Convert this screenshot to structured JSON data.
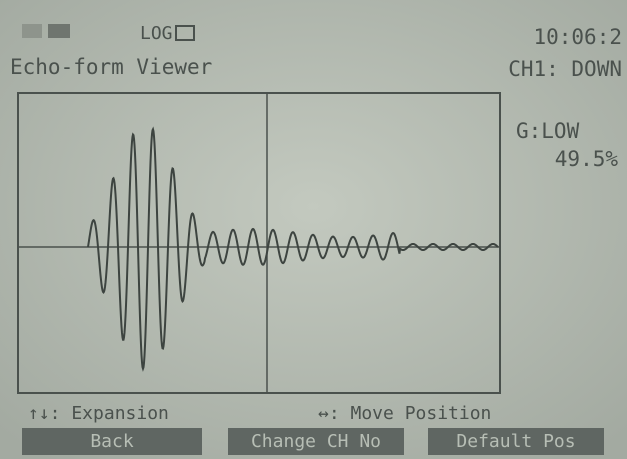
{
  "status": {
    "log": "LOG",
    "time": "10:06:2"
  },
  "header": {
    "title": "Echo-form Viewer",
    "channel": "CH1: DOWN"
  },
  "side": {
    "gain": "G:LOW",
    "level": "49.5%"
  },
  "hints": {
    "expansion": "↑↓: Expansion",
    "move": "↔: Move Position"
  },
  "buttons": [
    "Back",
    "Change CH No",
    "Default Pos"
  ]
}
